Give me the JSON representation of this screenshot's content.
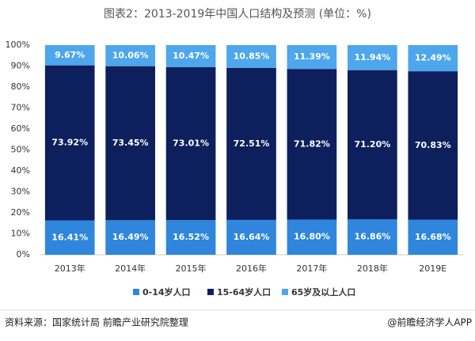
{
  "chart_data": {
    "type": "stacked_bar",
    "title": "图表2：2013-2019年中国人口结构及预测 (单位：%)",
    "categories": [
      "2013年",
      "2014年",
      "2015年",
      "2016年",
      "2017年",
      "2018年",
      "2019E"
    ],
    "series": [
      {
        "name": "0-14岁人口",
        "color": "#2f86dc",
        "values": [
          16.41,
          16.49,
          16.52,
          16.64,
          16.8,
          16.86,
          16.68
        ],
        "value_labels": [
          "16.41%",
          "16.49%",
          "16.52%",
          "16.64%",
          "16.80%",
          "16.86%",
          "16.68%"
        ]
      },
      {
        "name": "15-64岁人口",
        "color": "#0d1f5c",
        "values": [
          73.92,
          73.45,
          73.01,
          72.51,
          71.82,
          71.2,
          70.83
        ],
        "value_labels": [
          "73.92%",
          "73.45%",
          "73.01%",
          "72.51%",
          "71.82%",
          "71.20%",
          "70.83%"
        ]
      },
      {
        "name": "65岁及以上人口",
        "color": "#4ea6ec",
        "values": [
          9.67,
          10.06,
          10.47,
          10.85,
          11.39,
          11.94,
          12.49
        ],
        "value_labels": [
          "9.67%",
          "10.06%",
          "10.47%",
          "10.85%",
          "11.39%",
          "11.94%",
          "12.49%"
        ]
      }
    ],
    "ylim": [
      0,
      100
    ],
    "yticks": [
      {
        "value": 0,
        "label": "0%"
      },
      {
        "value": 10,
        "label": "10%"
      },
      {
        "value": 20,
        "label": "20%"
      },
      {
        "value": 30,
        "label": "30%"
      },
      {
        "value": 40,
        "label": "40%"
      },
      {
        "value": 50,
        "label": "50%"
      },
      {
        "value": 60,
        "label": "60%"
      },
      {
        "value": 70,
        "label": "70%"
      },
      {
        "value": 80,
        "label": "80%"
      },
      {
        "value": 90,
        "label": "90%"
      },
      {
        "value": 100,
        "label": "100%"
      }
    ],
    "grid": false
  },
  "footer": {
    "source": "资料来源：国家统计局 前瞻产业研究院整理",
    "credit": "@前瞻经济学人APP"
  }
}
